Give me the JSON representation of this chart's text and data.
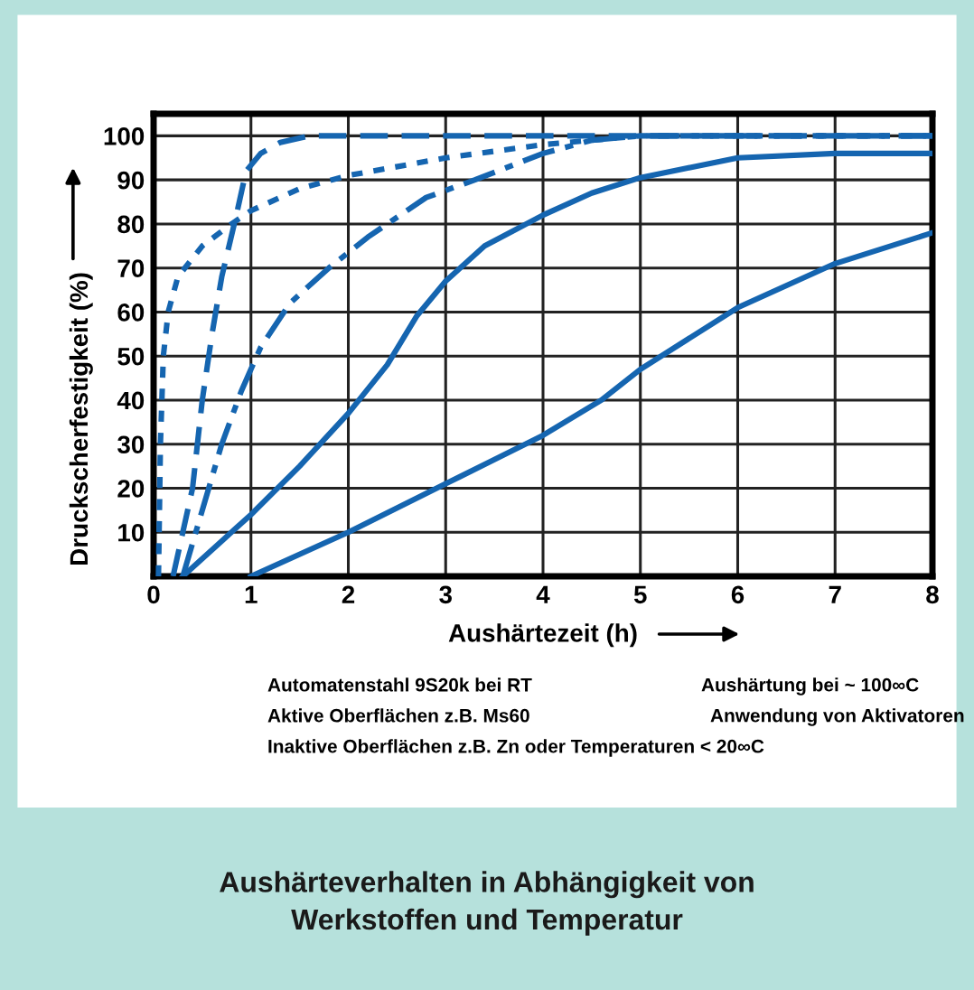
{
  "chart_data": {
    "type": "line",
    "title": "Aushärteverhalten in Abhängigkeit von\nWerkstoffen und Temperatur",
    "xlabel": "Aushärtezeit (h)",
    "ylabel": "Druckscherfestigkeit (%)",
    "xlim": [
      0,
      8
    ],
    "ylim": [
      0,
      105
    ],
    "xticks": [
      0,
      1,
      2,
      3,
      4,
      5,
      6,
      7,
      8
    ],
    "yticks": [
      10,
      20,
      30,
      40,
      50,
      60,
      70,
      80,
      90,
      100
    ],
    "grid": true,
    "legend": false,
    "marker": "none",
    "series": [
      {
        "color": "#1565b0",
        "line_style": "dotted",
        "x": [
          0.05,
          0.07,
          0.1,
          0.15,
          0.25,
          0.5,
          0.8,
          1,
          1.5,
          2,
          3,
          4,
          5,
          8
        ],
        "values": [
          0,
          30,
          50,
          60,
          68,
          75,
          80,
          83,
          88,
          91,
          95,
          98,
          100,
          100
        ]
      },
      {
        "color": "#1565b0",
        "line_style": "dashed",
        "x": [
          0.2,
          0.4,
          0.5,
          0.6,
          0.7,
          0.85,
          0.95,
          1.1,
          1.3,
          1.6,
          8
        ],
        "values": [
          0,
          20,
          40,
          55,
          68,
          82,
          92,
          96,
          98.5,
          100,
          100
        ]
      },
      {
        "color": "#1565b0",
        "line_style": "dashdot",
        "x": [
          0.3,
          0.5,
          0.7,
          0.9,
          1.1,
          1.4,
          1.8,
          2.2,
          2.8,
          3.3,
          4,
          4.5,
          5,
          8
        ],
        "values": [
          0,
          15,
          30,
          42,
          52,
          62,
          70,
          77,
          86,
          90,
          96,
          99,
          100,
          100
        ]
      },
      {
        "color": "#1565b0",
        "line_style": "solid",
        "x": [
          0.3,
          0.7,
          1,
          1.5,
          2,
          2.4,
          2.7,
          3,
          3.4,
          4,
          4.5,
          5,
          6,
          7,
          8
        ],
        "values": [
          0,
          8,
          14,
          25,
          37,
          48,
          59,
          67,
          75,
          82,
          87,
          90.5,
          95,
          96,
          96
        ]
      },
      {
        "color": "#1565b0",
        "line_style": "solid",
        "x": [
          1,
          2,
          3,
          4,
          4.6,
          5,
          5.5,
          6,
          7,
          8
        ],
        "values": [
          0,
          10,
          21,
          32,
          40,
          47,
          54,
          61,
          71,
          78
        ]
      }
    ],
    "annotations": [
      "Automatenstahl 9S20k bei RT",
      "Aushärtung bei ~ 100∞C",
      "Aktive Oberflächen z.B. Ms60",
      "Anwendung von Aktivatoren",
      "Inaktive Oberflächen z.B. Zn oder Temperaturen < 20∞C"
    ]
  }
}
